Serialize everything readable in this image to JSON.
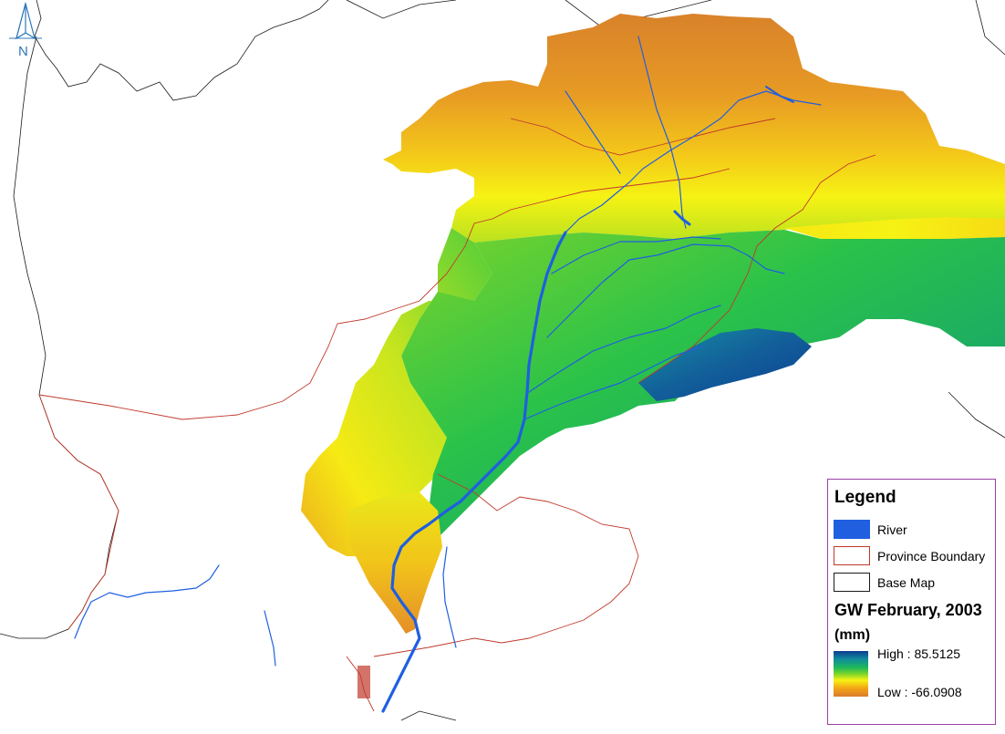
{
  "map": {
    "north_label": "N",
    "colors": {
      "river": "#1f5fe0",
      "province_boundary": "#c0392b",
      "base_map": "#1a1a1a",
      "gw_high": "#0b3d91",
      "gw_mid": "#1cb85a",
      "gw_yellow": "#f6f214",
      "gw_low": "#d97b2e"
    }
  },
  "legend": {
    "title": "Legend",
    "items": [
      {
        "label": "River",
        "color": "#1f5fe0"
      },
      {
        "label": "Province Boundary",
        "color": "#c0392b"
      },
      {
        "label": "Base Map",
        "color": "#1a1a1a"
      }
    ],
    "gw_title": "GW February, 2003",
    "gw_unit": "(mm)",
    "high_label": "High : 85.5125",
    "low_label": "Low : -66.0908"
  }
}
